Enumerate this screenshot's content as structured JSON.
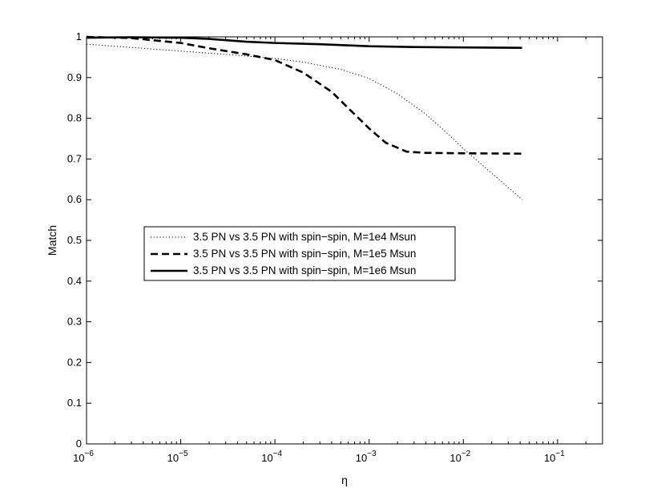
{
  "chart_data": {
    "type": "line",
    "title": "",
    "xlabel": "η",
    "ylabel": "Match",
    "xscale": "log",
    "xlim": [
      1e-06,
      0.3
    ],
    "ylim": [
      0,
      1
    ],
    "x_ticks": [
      {
        "value": 1e-06,
        "base": "10",
        "exp": "−6"
      },
      {
        "value": 1e-05,
        "base": "10",
        "exp": "−5"
      },
      {
        "value": 0.0001,
        "base": "10",
        "exp": "−4"
      },
      {
        "value": 0.001,
        "base": "10",
        "exp": "−3"
      },
      {
        "value": 0.01,
        "base": "10",
        "exp": "−2"
      },
      {
        "value": 0.1,
        "base": "10",
        "exp": "−1"
      }
    ],
    "y_ticks": [
      {
        "value": 0,
        "label": "0"
      },
      {
        "value": 0.1,
        "label": "0.1"
      },
      {
        "value": 0.2,
        "label": "0.2"
      },
      {
        "value": 0.3,
        "label": "0.3"
      },
      {
        "value": 0.4,
        "label": "0.4"
      },
      {
        "value": 0.5,
        "label": "0.5"
      },
      {
        "value": 0.6,
        "label": "0.6"
      },
      {
        "value": 0.7,
        "label": "0.7"
      },
      {
        "value": 0.8,
        "label": "0.8"
      },
      {
        "value": 0.9,
        "label": "0.9"
      },
      {
        "value": 1,
        "label": "1"
      }
    ],
    "grid": false,
    "legend_position": "middle-left",
    "series": [
      {
        "name": "3.5 PN vs 3.5 PN with spin−spin, M=1e4 Msun",
        "style": "dotted",
        "color": "#000000",
        "points": [
          [
            1e-06,
            0.982
          ],
          [
            3e-06,
            0.974
          ],
          [
            1e-05,
            0.965
          ],
          [
            3e-05,
            0.957
          ],
          [
            0.0001,
            0.947
          ],
          [
            0.0002,
            0.938
          ],
          [
            0.0005,
            0.92
          ],
          [
            0.001,
            0.898
          ],
          [
            0.002,
            0.86
          ],
          [
            0.004,
            0.81
          ],
          [
            0.007,
            0.76
          ],
          [
            0.01,
            0.725
          ],
          [
            0.015,
            0.69
          ],
          [
            0.02,
            0.665
          ],
          [
            0.03,
            0.63
          ],
          [
            0.042,
            0.6
          ]
        ]
      },
      {
        "name": "3.5 PN vs 3.5 PN with spin−spin, M=1e5 Msun",
        "style": "dashed",
        "color": "#000000",
        "points": [
          [
            1e-06,
            1.0
          ],
          [
            3e-06,
            0.997
          ],
          [
            1e-05,
            0.985
          ],
          [
            2e-05,
            0.972
          ],
          [
            5e-05,
            0.957
          ],
          [
            0.0001,
            0.943
          ],
          [
            0.0002,
            0.912
          ],
          [
            0.0004,
            0.865
          ],
          [
            0.0006,
            0.825
          ],
          [
            0.001,
            0.775
          ],
          [
            0.0015,
            0.74
          ],
          [
            0.0025,
            0.718
          ],
          [
            0.004,
            0.715
          ],
          [
            0.01,
            0.714
          ],
          [
            0.042,
            0.713
          ]
        ]
      },
      {
        "name": "3.5 PN vs 3.5 PN with spin−spin, M=1e6 Msun",
        "style": "solid",
        "color": "#000000",
        "points": [
          [
            1e-06,
            0.998
          ],
          [
            3e-06,
            0.999
          ],
          [
            1e-05,
            0.998
          ],
          [
            2e-05,
            0.995
          ],
          [
            5e-05,
            0.988
          ],
          [
            0.0001,
            0.985
          ],
          [
            0.0003,
            0.982
          ],
          [
            0.001,
            0.977
          ],
          [
            0.003,
            0.975
          ],
          [
            0.01,
            0.974
          ],
          [
            0.042,
            0.973
          ]
        ]
      }
    ]
  }
}
